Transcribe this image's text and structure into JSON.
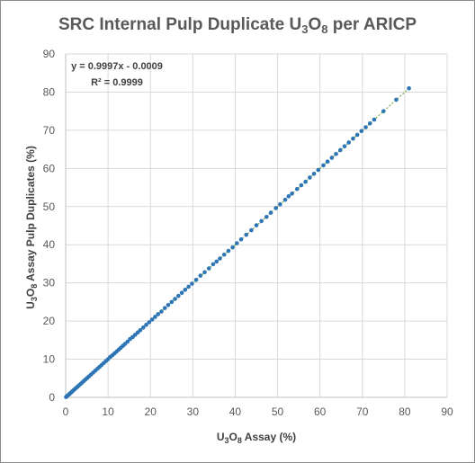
{
  "chart_data": {
    "type": "scatter",
    "title": {
      "main": "SRC Internal Pulp Duplicate U",
      "sub1": "3",
      "mid": "O",
      "sub2": "8",
      "end": " per ARICP"
    },
    "xlabel": {
      "pre": "U",
      "sub1": "3",
      "mid": "O",
      "sub2": "8",
      "end": " Assay (%)"
    },
    "ylabel": {
      "pre": "U",
      "sub1": "3",
      "mid": "O",
      "sub2": "8",
      "end": " Assay Pulp Duplicates (%)"
    },
    "xlim": [
      0,
      90
    ],
    "ylim": [
      0,
      90
    ],
    "xticks": [
      0,
      10,
      20,
      30,
      40,
      50,
      60,
      70,
      80,
      90
    ],
    "yticks": [
      0,
      10,
      20,
      30,
      40,
      50,
      60,
      70,
      80,
      90
    ],
    "grid": true,
    "marker_color": "#2e75b6",
    "trendline_color": "#70ad47",
    "trendline": {
      "slope": 0.9997,
      "intercept": -0.0009,
      "equation": "y = 0.9997x - 0.0009",
      "r2": "R² = 0.9999"
    },
    "series": [
      {
        "x": [
          0.1,
          0.3,
          0.5,
          0.8,
          1.0,
          1.3,
          1.6,
          1.9,
          2.2,
          2.5,
          2.8,
          3.1,
          3.5,
          3.9,
          4.3,
          4.7,
          5.1,
          5.5,
          6.0,
          6.5,
          7.0,
          7.5,
          8.0,
          8.5,
          9.0,
          9.5,
          10.0,
          10.5,
          11.0,
          11.5,
          12.0,
          12.5,
          13.0,
          13.5,
          14.0,
          14.6,
          15.2,
          15.8,
          16.4,
          17.0,
          17.6,
          18.3,
          19.0,
          19.7,
          20.4,
          21.1,
          21.8,
          22.6,
          23.4,
          24.2,
          25.0,
          25.8,
          26.6,
          27.4,
          28.2,
          29.0,
          29.8,
          30.8,
          31.8,
          32.8,
          33.8,
          34.8,
          35.6,
          36.4,
          37.4,
          38.4,
          39.4,
          40.4,
          41.4,
          42.6,
          43.8,
          45.0,
          46.2,
          47.4,
          48.4,
          49.6,
          50.6,
          51.8,
          52.6,
          53.4,
          54.6,
          55.6,
          56.6,
          57.6,
          58.6,
          59.6,
          60.8,
          61.8,
          62.8,
          63.8,
          64.8,
          65.8,
          66.8,
          67.8,
          68.8,
          69.8,
          70.8,
          71.8,
          72.8,
          75.0,
          78.0,
          81.0
        ],
        "y": [
          0.1,
          0.3,
          0.5,
          0.8,
          1.0,
          1.3,
          1.6,
          1.9,
          2.2,
          2.5,
          2.8,
          3.1,
          3.5,
          3.9,
          4.3,
          4.7,
          5.1,
          5.5,
          6.0,
          6.5,
          7.0,
          7.5,
          8.0,
          8.5,
          9.0,
          9.5,
          10.0,
          10.6,
          11.0,
          11.5,
          12.0,
          12.5,
          13.0,
          13.5,
          14.0,
          14.6,
          15.3,
          15.8,
          16.4,
          17.0,
          17.6,
          18.3,
          19.0,
          19.7,
          20.4,
          21.1,
          21.8,
          22.5,
          23.4,
          24.2,
          25.0,
          25.8,
          26.6,
          27.4,
          28.2,
          29.0,
          29.8,
          30.8,
          31.9,
          32.8,
          33.8,
          34.9,
          35.6,
          36.4,
          37.4,
          38.4,
          39.3,
          40.4,
          41.4,
          42.6,
          43.8,
          45.1,
          46.2,
          47.3,
          48.4,
          49.6,
          50.6,
          51.8,
          52.7,
          53.4,
          54.6,
          55.6,
          56.5,
          57.6,
          58.6,
          59.6,
          60.8,
          61.8,
          62.8,
          63.8,
          64.8,
          65.8,
          66.8,
          67.8,
          68.8,
          69.8,
          70.8,
          71.8,
          72.8,
          75.0,
          78.0,
          81.0
        ]
      }
    ]
  }
}
